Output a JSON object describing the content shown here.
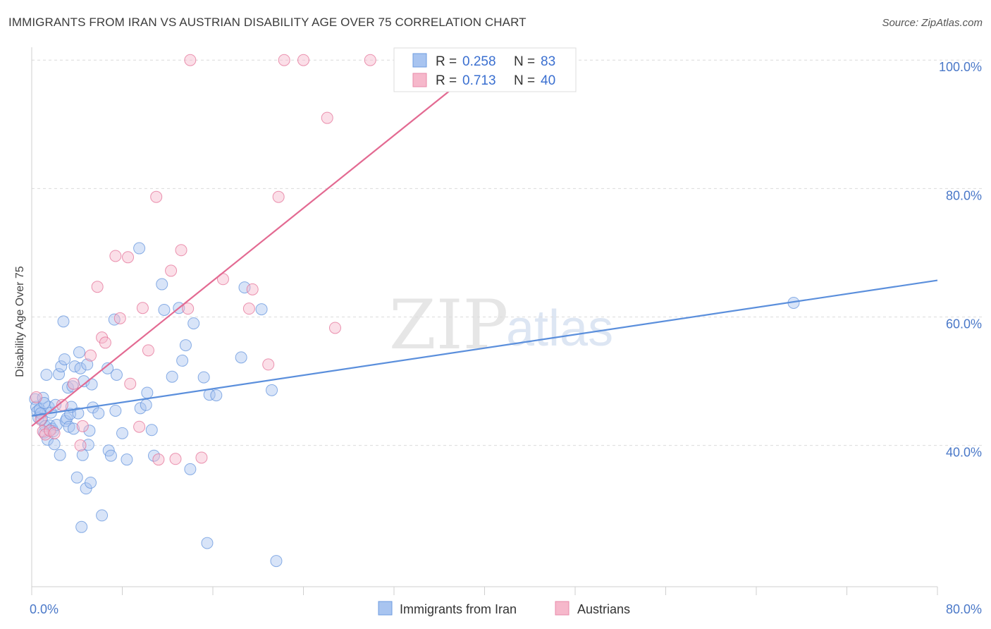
{
  "title": "IMMIGRANTS FROM IRAN VS AUSTRIAN DISABILITY AGE OVER 75 CORRELATION CHART",
  "source": "Source: ZipAtlas.com",
  "watermark": {
    "zip": "ZIP",
    "atlas": "atlas"
  },
  "legend_box": {
    "rows": [
      {
        "r_label": "R = ",
        "r_value": "0.258",
        "n_label": "N = ",
        "n_value": "83",
        "color": "#a8c4f0"
      },
      {
        "r_label": "R = ",
        "r_value": "0.713",
        "n_label": "N = ",
        "n_value": "40",
        "color": "#f6b8cb"
      }
    ]
  },
  "bottom_legend": [
    {
      "label": "Immigrants from Iran",
      "color": "#a8c4f0"
    },
    {
      "label": "Austrians",
      "color": "#f6b8cb"
    }
  ],
  "chart_data": {
    "type": "scatter",
    "title": "IMMIGRANTS FROM IRAN VS AUSTRIAN DISABILITY AGE OVER 75 CORRELATION CHART",
    "xlabel": "",
    "ylabel": "Disability Age Over 75",
    "xlim": [
      0,
      80
    ],
    "ylim": [
      18,
      102
    ],
    "x_tick_labels": [
      {
        "value": 0,
        "label": "0.0%"
      },
      {
        "value": 80,
        "label": "80.0%"
      }
    ],
    "y_tick_labels": [
      {
        "value": 40,
        "label": "40.0%"
      },
      {
        "value": 60,
        "label": "60.0%"
      },
      {
        "value": 80,
        "label": "80.0%"
      },
      {
        "value": 100,
        "label": "100.0%"
      }
    ],
    "grid": true,
    "legend_position": "top-center",
    "series": [
      {
        "name": "Immigrants from Iran",
        "color": "#5b8fdc",
        "fill": "#a8c4f0",
        "trend": {
          "x": [
            0,
            80
          ],
          "y": [
            44.6,
            65.7
          ]
        },
        "points": [
          [
            0.3,
            47.2
          ],
          [
            0.4,
            46.0
          ],
          [
            0.5,
            45.3
          ],
          [
            0.6,
            44.3
          ],
          [
            0.7,
            45.6
          ],
          [
            0.8,
            45.0
          ],
          [
            0.9,
            44.1
          ],
          [
            1.0,
            47.4
          ],
          [
            1.1,
            42.0
          ],
          [
            1.2,
            43.0
          ],
          [
            1.3,
            51.0
          ],
          [
            1.4,
            40.9
          ],
          [
            1.5,
            46.0
          ],
          [
            1.6,
            43.1
          ],
          [
            1.7,
            45.1
          ],
          [
            1.8,
            42.6
          ],
          [
            1.9,
            42.2
          ],
          [
            2.0,
            40.2
          ],
          [
            2.1,
            46.3
          ],
          [
            2.2,
            43.2
          ],
          [
            2.4,
            51.1
          ],
          [
            2.5,
            38.5
          ],
          [
            2.6,
            52.3
          ],
          [
            2.8,
            59.3
          ],
          [
            2.9,
            53.4
          ],
          [
            3.0,
            43.8
          ],
          [
            3.1,
            44.2
          ],
          [
            3.2,
            49.0
          ],
          [
            3.3,
            42.9
          ],
          [
            3.4,
            44.9
          ],
          [
            3.5,
            46.0
          ],
          [
            3.6,
            49.2
          ],
          [
            3.8,
            52.3
          ],
          [
            4.0,
            35.0
          ],
          [
            4.1,
            45.0
          ],
          [
            4.2,
            54.5
          ],
          [
            4.3,
            52.0
          ],
          [
            4.4,
            27.3
          ],
          [
            4.5,
            38.5
          ],
          [
            4.6,
            50.0
          ],
          [
            4.8,
            33.3
          ],
          [
            4.9,
            52.6
          ],
          [
            5.0,
            40.1
          ],
          [
            5.1,
            42.3
          ],
          [
            5.2,
            34.2
          ],
          [
            5.3,
            49.5
          ],
          [
            5.4,
            45.9
          ],
          [
            6.2,
            29.1
          ],
          [
            6.7,
            52.0
          ],
          [
            6.8,
            39.2
          ],
          [
            7.0,
            38.4
          ],
          [
            7.3,
            59.6
          ],
          [
            7.4,
            45.4
          ],
          [
            7.5,
            51.0
          ],
          [
            8.0,
            41.9
          ],
          [
            8.4,
            37.8
          ],
          [
            9.5,
            70.7
          ],
          [
            9.6,
            45.8
          ],
          [
            10.1,
            46.3
          ],
          [
            10.2,
            48.2
          ],
          [
            10.6,
            42.4
          ],
          [
            10.8,
            38.4
          ],
          [
            11.5,
            65.1
          ],
          [
            11.7,
            61.1
          ],
          [
            12.4,
            50.7
          ],
          [
            13.0,
            61.4
          ],
          [
            13.3,
            53.2
          ],
          [
            13.6,
            55.6
          ],
          [
            14.0,
            36.3
          ],
          [
            14.3,
            59.0
          ],
          [
            15.2,
            50.6
          ],
          [
            15.5,
            24.8
          ],
          [
            15.7,
            47.9
          ],
          [
            16.3,
            47.8
          ],
          [
            18.5,
            53.7
          ],
          [
            18.8,
            64.6
          ],
          [
            20.3,
            61.2
          ],
          [
            21.2,
            48.6
          ],
          [
            21.6,
            22.0
          ],
          [
            67.3,
            62.2
          ],
          [
            1.1,
            46.6
          ],
          [
            3.7,
            42.6
          ],
          [
            5.9,
            45.0
          ]
        ]
      },
      {
        "name": "Austrians",
        "color": "#e36a92",
        "fill": "#f6b8cb",
        "trend": {
          "x": [
            0,
            41
          ],
          "y": [
            43.0,
            101.0
          ]
        },
        "points": [
          [
            0.4,
            47.5
          ],
          [
            0.8,
            44.0
          ],
          [
            1.0,
            42.2
          ],
          [
            1.2,
            41.7
          ],
          [
            1.6,
            42.3
          ],
          [
            2.0,
            41.9
          ],
          [
            2.7,
            46.3
          ],
          [
            3.7,
            49.6
          ],
          [
            4.3,
            40.0
          ],
          [
            4.5,
            43.0
          ],
          [
            5.2,
            54.0
          ],
          [
            5.8,
            64.7
          ],
          [
            6.2,
            56.8
          ],
          [
            6.5,
            56.0
          ],
          [
            7.4,
            69.5
          ],
          [
            7.8,
            59.8
          ],
          [
            8.5,
            69.3
          ],
          [
            8.7,
            49.6
          ],
          [
            9.5,
            42.9
          ],
          [
            9.8,
            61.4
          ],
          [
            10.3,
            54.8
          ],
          [
            11.0,
            78.7
          ],
          [
            11.2,
            37.8
          ],
          [
            12.3,
            67.2
          ],
          [
            12.7,
            37.9
          ],
          [
            13.2,
            70.4
          ],
          [
            13.8,
            61.3
          ],
          [
            14.0,
            100.0
          ],
          [
            15.0,
            38.1
          ],
          [
            16.9,
            65.9
          ],
          [
            19.2,
            61.3
          ],
          [
            19.5,
            64.3
          ],
          [
            20.9,
            52.6
          ],
          [
            21.8,
            78.7
          ],
          [
            22.3,
            100.0
          ],
          [
            24.0,
            100.0
          ],
          [
            26.1,
            91.0
          ],
          [
            26.8,
            58.3
          ],
          [
            29.9,
            100.0
          ],
          [
            41.4,
            100.0
          ]
        ]
      }
    ]
  }
}
